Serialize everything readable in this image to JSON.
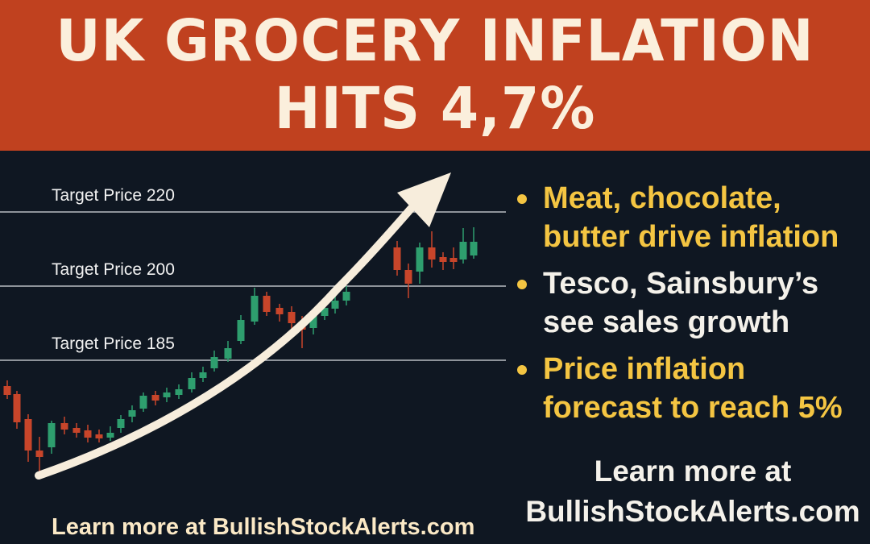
{
  "banner": {
    "line1": "UK GROCERY INFLATION",
    "line2": "HITS 4,7%",
    "color": "#c0411f"
  },
  "chart_data": {
    "type": "candlestick",
    "target_lines": [
      {
        "label": "Target Price 220",
        "value": 220
      },
      {
        "label": "Target Price 200",
        "value": 200
      },
      {
        "label": "Target Price 185",
        "value": 185
      }
    ],
    "up_color": "#2e9e6e",
    "down_color": "#c8452a",
    "trend_arrow": "up"
  },
  "bullets": [
    {
      "text": "Meat, chocolate, butter drive inflation",
      "color": "yellow"
    },
    {
      "text": "Tesco, Sainsbury’s see sales growth",
      "color": "white"
    },
    {
      "text": "Price inflation forecast to reach 5%",
      "color": "yellow"
    }
  ],
  "cta_right": {
    "line1": "Learn more at",
    "line2": "BullishStockAlerts.com"
  },
  "cta_bottom": "Learn more at BullishStockAlerts.com"
}
